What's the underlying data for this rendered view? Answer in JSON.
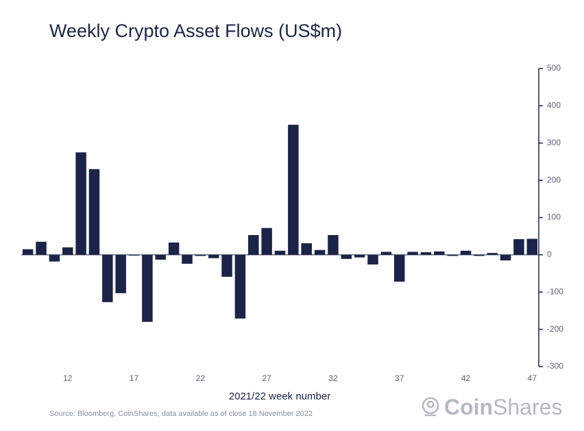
{
  "chart_data": {
    "type": "bar",
    "title": "Weekly Crypto Asset Flows (US$m)",
    "xlabel": "2021/22 week number",
    "source": "Source: Bloomberg, CoinShares, data available as of close 18 November 2022",
    "logo_bold": "Coin",
    "logo_light": "Shares",
    "categories": [
      null,
      null,
      null,
      "12",
      null,
      null,
      null,
      null,
      "17",
      null,
      null,
      null,
      null,
      "22",
      null,
      null,
      null,
      null,
      "27",
      null,
      null,
      null,
      null,
      "32",
      null,
      null,
      null,
      null,
      "37",
      null,
      null,
      null,
      null,
      "42",
      null,
      null,
      null,
      null,
      "47"
    ],
    "values": [
      15,
      35,
      -18,
      20,
      275,
      230,
      -127,
      -103,
      -2,
      -180,
      -13,
      33,
      -24,
      -3,
      -9,
      -59,
      -171,
      53,
      72,
      11,
      349,
      31,
      13,
      53,
      -11,
      -7,
      -26,
      8,
      -72,
      8,
      7,
      9,
      -3,
      11,
      -3,
      5,
      -15,
      42,
      43
    ],
    "color": "#1b2448",
    "ylim": [
      -300,
      500
    ],
    "yticks": [
      -300,
      -200,
      -100,
      0,
      100,
      200,
      300,
      400,
      500
    ],
    "y_axis_side": "right",
    "grid": false
  }
}
